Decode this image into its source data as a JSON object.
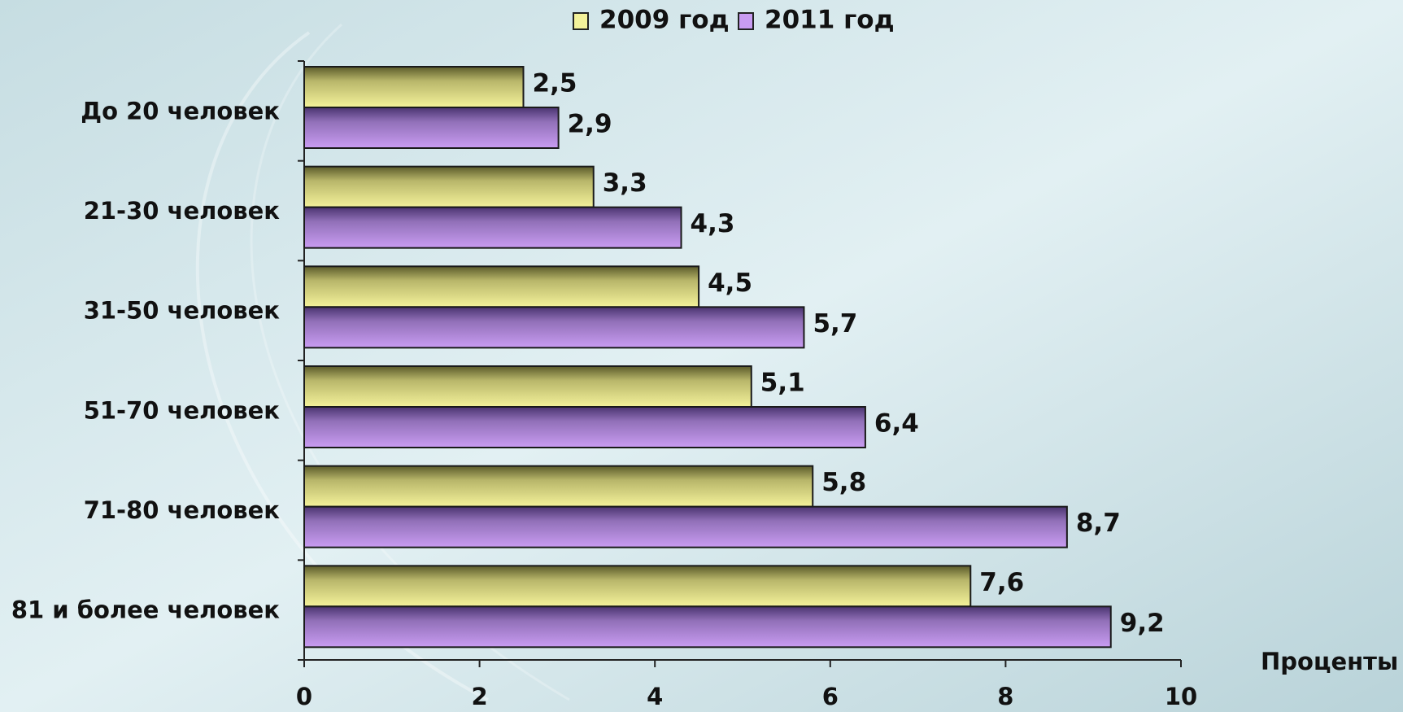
{
  "chart_data": {
    "type": "bar",
    "orientation": "horizontal",
    "categories": [
      "До 20 человек",
      "21-30 человек",
      "31-50 человек",
      "51-70 человек",
      "71-80 человек",
      "81 и более человек"
    ],
    "series": [
      {
        "name": "2009 год",
        "color": "#f4f29a",
        "values": [
          2.5,
          3.3,
          4.5,
          5.1,
          5.8,
          7.6
        ],
        "value_labels": [
          "2,5",
          "3,3",
          "4,5",
          "5,1",
          "5,8",
          "7,6"
        ]
      },
      {
        "name": "2011 год",
        "color": "#c99cf2",
        "values": [
          2.9,
          4.3,
          5.7,
          6.4,
          8.7,
          9.2
        ],
        "value_labels": [
          "2,9",
          "4,3",
          "5,7",
          "6,4",
          "8,7",
          "9,2"
        ]
      }
    ],
    "x_label": "Проценты",
    "xlim": [
      0,
      10
    ],
    "xticks": [
      0,
      2,
      4,
      6,
      8,
      10
    ],
    "grid": false,
    "legend": "top"
  }
}
